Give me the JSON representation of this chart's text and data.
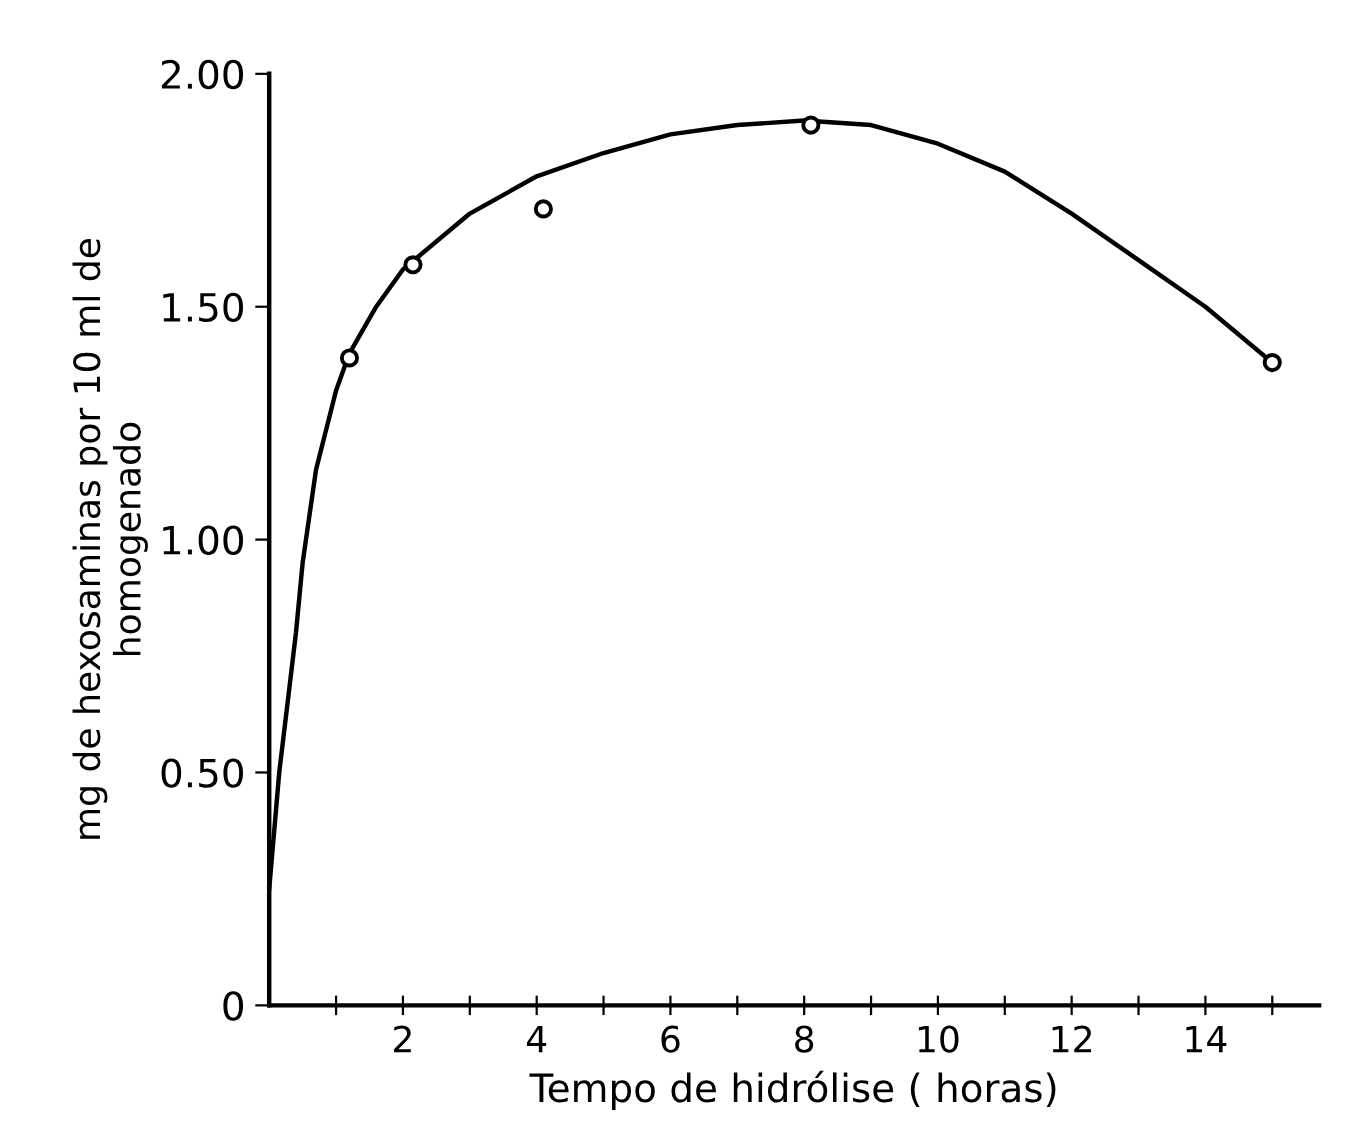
{
  "chart_data": {
    "type": "scatter",
    "xlabel": "Tempo de hidrólise ( horas)",
    "ylabel": "mg de hexosaminas por 10 ml de\nhomogenado",
    "xlim": [
      0,
      15.7
    ],
    "ylim": [
      0,
      2.0
    ],
    "xticks": [
      {
        "value": 1,
        "label": null
      },
      2,
      {
        "value": 3,
        "label": null
      },
      4,
      {
        "value": 5,
        "label": null
      },
      6,
      {
        "value": 7,
        "label": null
      },
      8,
      {
        "value": 9,
        "label": null
      },
      10,
      {
        "value": 11,
        "label": null
      },
      12,
      {
        "value": 13,
        "label": null
      },
      14,
      {
        "value": 15,
        "label": null
      }
    ],
    "yticks": [
      {
        "value": 0,
        "label": "0"
      },
      {
        "value": 0.5,
        "label": "0.50"
      },
      {
        "value": 1.0,
        "label": "1.00"
      },
      {
        "value": 1.5,
        "label": "1.50"
      },
      {
        "value": 2.0,
        "label": "2.00"
      }
    ],
    "grid": false,
    "legend": false,
    "series": [
      {
        "color": "#000000",
        "marker": "circle",
        "x": [
          1.2,
          2.15,
          4.1,
          8.1,
          15.0
        ],
        "values": [
          1.39,
          1.59,
          1.71,
          1.89,
          1.38
        ]
      },
      {
        "type": "line",
        "color": "#000000",
        "marker": "none",
        "line_style": "solid",
        "x": [
          0,
          0.15,
          0.3,
          0.4,
          0.5,
          0.7,
          1.0,
          1.2,
          1.6,
          2,
          3,
          4,
          5,
          6,
          7,
          8,
          9,
          10,
          11,
          12,
          13,
          14,
          15
        ],
        "values": [
          0.25,
          0.5,
          0.68,
          0.8,
          0.95,
          1.15,
          1.32,
          1.4,
          1.5,
          1.58,
          1.7,
          1.78,
          1.83,
          1.87,
          1.89,
          1.9,
          1.89,
          1.85,
          1.79,
          1.7,
          1.6,
          1.5,
          1.38
        ]
      }
    ]
  }
}
